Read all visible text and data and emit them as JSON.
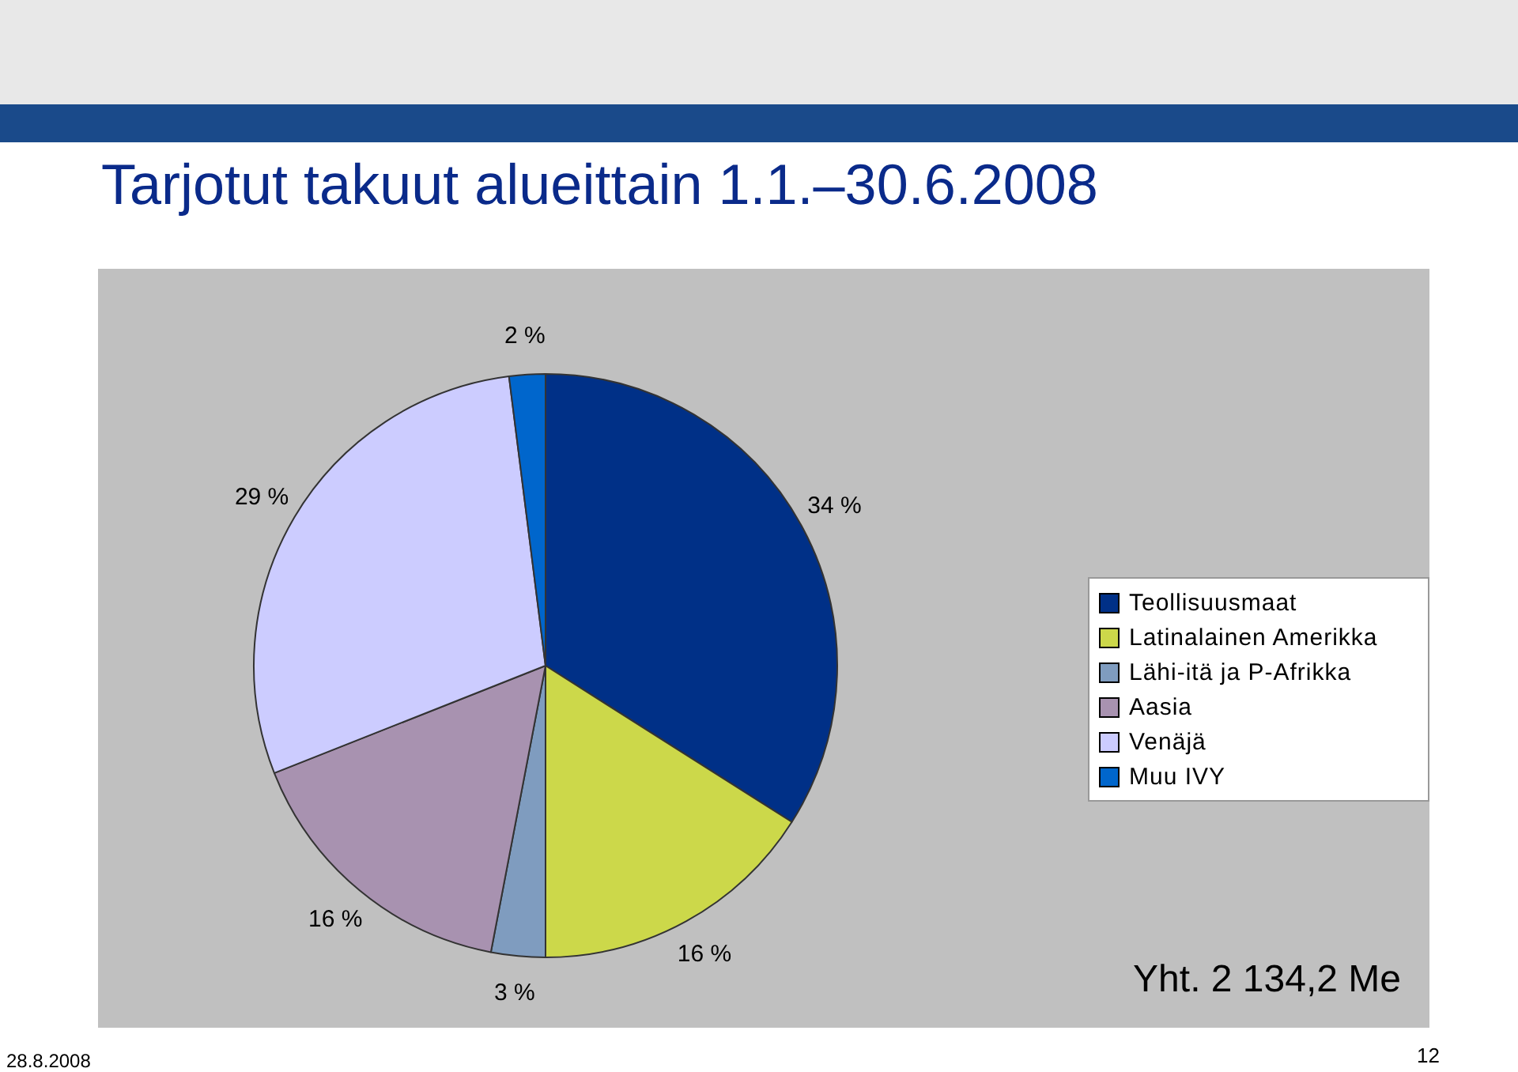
{
  "chart_data": {
    "type": "pie",
    "title": "Tarjotut takuut alueittain 1.1.–30.6.2008",
    "categories": [
      "Teollisuusmaat",
      "Latinalainen Amerikka",
      "Lähi-itä ja P-Afrikka",
      "Aasia",
      "Venäjä",
      "Muu IVY"
    ],
    "values": [
      34,
      16,
      3,
      16,
      29,
      2
    ],
    "colors": [
      "#003087",
      "#ccd84a",
      "#7f9cbf",
      "#a892b0",
      "#ccccff",
      "#0066cc"
    ],
    "value_labels": [
      "34 %",
      "16 %",
      "3 %",
      "16 %",
      "29 %",
      "2 %"
    ],
    "legend": "right",
    "annotations": [
      "Yht. 2 134,2 Me",
      "28.8.2008",
      "12"
    ]
  }
}
